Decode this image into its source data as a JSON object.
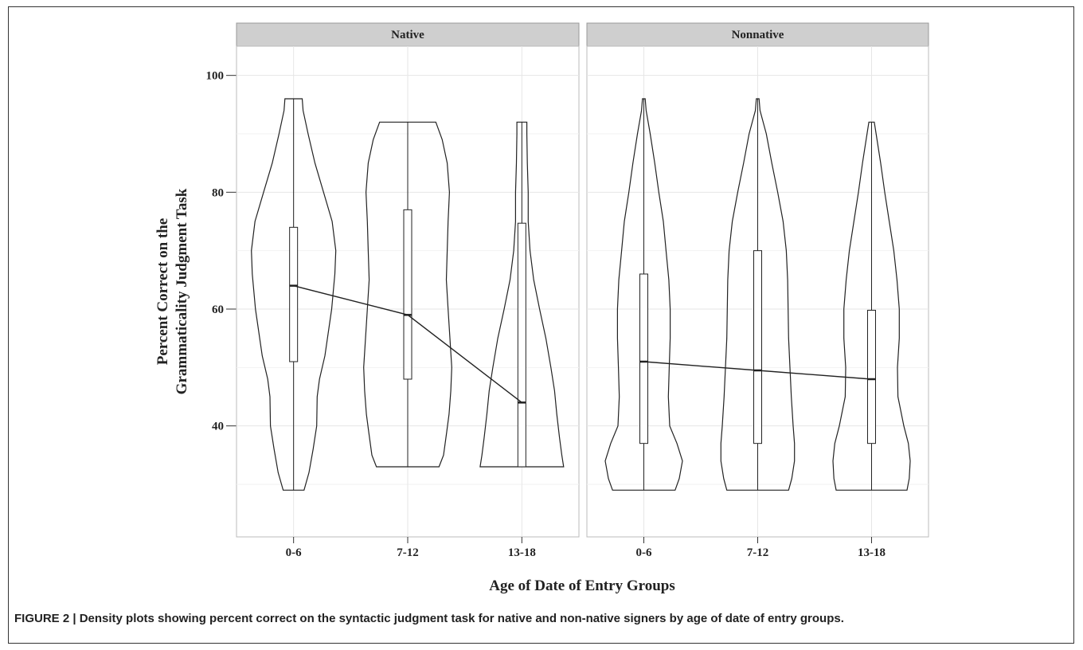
{
  "figure": {
    "caption": "FIGURE 2 | Density plots showing percent correct on the syntactic judgment task for native and non-native signers by age of date of entry groups."
  },
  "chart_data": {
    "type": "violin",
    "xlabel": "Age of Date of Entry Groups",
    "ylabel_lines": [
      "Percent Correct on the",
      "Grammaticality Judgment Task"
    ],
    "yticks": [
      40,
      60,
      80,
      100
    ],
    "ylim": [
      21,
      105
    ],
    "grid": true,
    "categories": [
      "0-6",
      "7-12",
      "13-18"
    ],
    "panels": [
      {
        "name": "Native",
        "groups": [
          {
            "category": "0-6",
            "min": 29,
            "max": 96,
            "q1": 51,
            "median": 64,
            "q3": 74,
            "density": [
              [
                29,
                0.23
              ],
              [
                32,
                0.34
              ],
              [
                36,
                0.43
              ],
              [
                40,
                0.51
              ],
              [
                45,
                0.52
              ],
              [
                48,
                0.57
              ],
              [
                52,
                0.69
              ],
              [
                60,
                0.84
              ],
              [
                66,
                0.91
              ],
              [
                70,
                0.93
              ],
              [
                75,
                0.85
              ],
              [
                80,
                0.66
              ],
              [
                85,
                0.47
              ],
              [
                90,
                0.32
              ],
              [
                94,
                0.21
              ],
              [
                96,
                0.19
              ]
            ]
          },
          {
            "category": "7-12",
            "min": 33,
            "max": 92,
            "q1": 48,
            "median": 59,
            "q3": 77,
            "density": [
              [
                33,
                0.69
              ],
              [
                35,
                0.79
              ],
              [
                39,
                0.86
              ],
              [
                42,
                0.91
              ],
              [
                46,
                0.95
              ],
              [
                50,
                0.97
              ],
              [
                55,
                0.93
              ],
              [
                60,
                0.89
              ],
              [
                65,
                0.85
              ],
              [
                70,
                0.87
              ],
              [
                75,
                0.89
              ],
              [
                80,
                0.92
              ],
              [
                85,
                0.87
              ],
              [
                89,
                0.76
              ],
              [
                92,
                0.62
              ]
            ]
          },
          {
            "category": "13-18",
            "min": 33,
            "max": 92,
            "q1": 33,
            "median": 44,
            "q3": 74.7,
            "density": [
              [
                33,
                0.92
              ],
              [
                35,
                0.88
              ],
              [
                38,
                0.83
              ],
              [
                42,
                0.77
              ],
              [
                46,
                0.72
              ],
              [
                50,
                0.64
              ],
              [
                55,
                0.53
              ],
              [
                60,
                0.39
              ],
              [
                65,
                0.26
              ],
              [
                70,
                0.18
              ],
              [
                75,
                0.14
              ],
              [
                80,
                0.14
              ],
              [
                85,
                0.12
              ],
              [
                90,
                0.11
              ],
              [
                92,
                0.11
              ]
            ]
          }
        ],
        "median_line": [
          64,
          59,
          44
        ]
      },
      {
        "name": "Nonnative",
        "groups": [
          {
            "category": "0-6",
            "min": 29,
            "max": 96,
            "q1": 37,
            "median": 51,
            "q3": 66,
            "density": [
              [
                29,
                0.69
              ],
              [
                31,
                0.78
              ],
              [
                34,
                0.85
              ],
              [
                37,
                0.73
              ],
              [
                40,
                0.57
              ],
              [
                45,
                0.54
              ],
              [
                50,
                0.56
              ],
              [
                55,
                0.58
              ],
              [
                60,
                0.58
              ],
              [
                65,
                0.55
              ],
              [
                70,
                0.49
              ],
              [
                75,
                0.43
              ],
              [
                80,
                0.33
              ],
              [
                85,
                0.24
              ],
              [
                90,
                0.14
              ],
              [
                94,
                0.05
              ],
              [
                96,
                0.03
              ]
            ]
          },
          {
            "category": "7-12",
            "min": 29,
            "max": 96,
            "q1": 37,
            "median": 49.5,
            "q3": 70,
            "density": [
              [
                29,
                0.68
              ],
              [
                31,
                0.75
              ],
              [
                34,
                0.81
              ],
              [
                37,
                0.81
              ],
              [
                40,
                0.78
              ],
              [
                45,
                0.74
              ],
              [
                50,
                0.71
              ],
              [
                55,
                0.68
              ],
              [
                60,
                0.67
              ],
              [
                65,
                0.66
              ],
              [
                70,
                0.63
              ],
              [
                75,
                0.56
              ],
              [
                80,
                0.44
              ],
              [
                85,
                0.31
              ],
              [
                90,
                0.19
              ],
              [
                94,
                0.05
              ],
              [
                96,
                0.03
              ]
            ]
          },
          {
            "category": "13-18",
            "min": 29,
            "max": 92,
            "q1": 37,
            "median": 48,
            "q3": 59.8,
            "density": [
              [
                29,
                0.78
              ],
              [
                31,
                0.83
              ],
              [
                34,
                0.85
              ],
              [
                37,
                0.81
              ],
              [
                40,
                0.71
              ],
              [
                45,
                0.58
              ],
              [
                50,
                0.57
              ],
              [
                55,
                0.61
              ],
              [
                60,
                0.61
              ],
              [
                65,
                0.56
              ],
              [
                70,
                0.49
              ],
              [
                75,
                0.39
              ],
              [
                80,
                0.29
              ],
              [
                85,
                0.2
              ],
              [
                90,
                0.1
              ],
              [
                92,
                0.06
              ]
            ]
          }
        ],
        "median_line": [
          51,
          49.5,
          48
        ]
      }
    ]
  }
}
